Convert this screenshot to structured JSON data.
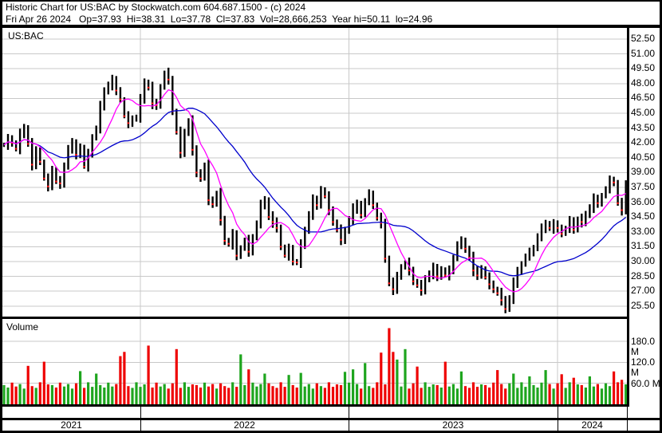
{
  "header": {
    "line1": "Historic Chart for US:BAC by Stockwatch.com 604.687.1500 - (c) 2024",
    "line2": "Fri Apr 26 2024   Op=37.93  Hi=38.31  Lo=37.78  Cl=37.83  Vol=28,666,253  Year hi=50.11  lo=24.96"
  },
  "main_chart": {
    "symbol_label": "US:BAC",
    "price_axis_labels": [
      "52.50",
      "51.00",
      "49.50",
      "48.00",
      "46.50",
      "45.00",
      "43.50",
      "42.00",
      "40.50",
      "39.00",
      "37.50",
      "36.00",
      "34.50",
      "33.00",
      "31.50",
      "30.00",
      "28.50",
      "27.00",
      "25.50"
    ]
  },
  "volume_panel": {
    "label": "Volume",
    "axis_labels": [
      "180.0 M",
      "120.0 M",
      "60.0 M"
    ]
  },
  "x_axis": {
    "years": [
      "2021",
      "2022",
      "2023",
      "2024"
    ]
  },
  "chart_data": {
    "type": "candlestick+volume",
    "title": "Historic Chart for US:BAC by Stockwatch.com 604.687.1500 - (c) 2024",
    "symbol": "US:BAC",
    "last_quote": {
      "date": "Fri Apr 26 2024",
      "open": 37.93,
      "high": 38.31,
      "low": 37.78,
      "close": 37.83,
      "volume": "28,666,253",
      "year_hi": 50.11,
      "year_lo": 24.96
    },
    "x_years": [
      "2021",
      "2022",
      "2023",
      "2024"
    ],
    "weeks_per_year": [
      34,
      52,
      52,
      18
    ],
    "price_ticks": [
      52.5,
      51.0,
      49.5,
      48.0,
      46.5,
      45.0,
      43.5,
      42.0,
      40.5,
      39.0,
      37.5,
      36.0,
      34.5,
      33.0,
      31.5,
      30.0,
      28.5,
      27.0,
      25.5
    ],
    "price_ylim": [
      24.4,
      53.6
    ],
    "volume_ticks_millions": [
      60,
      120,
      180
    ],
    "ma_short_weeks": 8,
    "ma_long_weeks": 26,
    "closes": [
      41.8,
      42.4,
      42.0,
      41.4,
      42.9,
      43.5,
      41.9,
      39.8,
      41.2,
      40.1,
      38.4,
      37.6,
      39.3,
      38.1,
      37.9,
      39.6,
      41.5,
      41.9,
      40.8,
      41.6,
      39.6,
      40.9,
      42.5,
      43.5,
      45.7,
      47.2,
      47.9,
      48.3,
      47.3,
      46.4,
      44.7,
      44.0,
      44.4,
      44.6,
      46.4,
      48.1,
      47.6,
      46.0,
      45.8,
      47.6,
      49.1,
      48.4,
      45.2,
      43.1,
      41.0,
      43.0,
      44.2,
      41.3,
      39.0,
      38.4,
      39.8,
      36.2,
      35.8,
      36.9,
      34.2,
      32.1,
      31.8,
      32.7,
      30.6,
      31.3,
      32.2,
      31.0,
      32.4,
      33.9,
      35.7,
      36.2,
      34.5,
      34.0,
      33.4,
      31.5,
      30.6,
      31.3,
      30.0,
      29.9,
      31.7,
      33.1,
      34.8,
      36.2,
      35.7,
      37.3,
      36.6,
      35.2,
      34.0,
      33.2,
      32.2,
      33.1,
      34.3,
      35.3,
      35.8,
      34.7,
      36.2,
      36.8,
      35.7,
      34.4,
      33.9,
      30.3,
      27.8,
      27.2,
      28.5,
      29.4,
      29.9,
      29.1,
      28.0,
      27.6,
      27.1,
      28.2,
      28.8,
      29.3,
      28.5,
      29.2,
      28.6,
      29.1,
      30.3,
      31.8,
      32.0,
      31.3,
      30.4,
      29.1,
      28.6,
      29.3,
      28.4,
      27.7,
      27.2,
      26.8,
      26.1,
      25.2,
      26.3,
      27.8,
      29.0,
      29.7,
      30.6,
      30.9,
      31.3,
      32.6,
      33.3,
      33.8,
      33.4,
      33.7,
      33.4,
      32.8,
      33.4,
      34.1,
      33.2,
      34.3,
      34.0,
      34.7,
      35.5,
      36.3,
      35.9,
      36.6,
      37.4,
      38.2,
      38.0,
      35.9,
      35.2,
      37.8
    ],
    "volumes_millions": [
      55,
      48,
      62,
      51,
      58,
      45,
      110,
      52,
      47,
      63,
      122,
      57,
      55,
      48,
      62,
      51,
      58,
      45,
      60,
      95,
      47,
      63,
      50,
      88,
      55,
      48,
      62,
      51,
      58,
      138,
      150,
      52,
      47,
      63,
      50,
      57,
      168,
      48,
      62,
      51,
      58,
      45,
      60,
      158,
      47,
      63,
      50,
      57,
      55,
      48,
      62,
      51,
      58,
      45,
      60,
      52,
      47,
      63,
      50,
      143,
      55,
      100,
      62,
      51,
      58,
      88,
      60,
      52,
      47,
      63,
      50,
      84,
      55,
      48,
      90,
      51,
      58,
      45,
      60,
      52,
      47,
      63,
      50,
      57,
      55,
      93,
      62,
      100,
      58,
      45,
      118,
      52,
      47,
      63,
      148,
      57,
      218,
      150,
      128,
      51,
      158,
      45,
      60,
      108,
      47,
      63,
      50,
      57,
      55,
      48,
      122,
      51,
      58,
      45,
      94,
      52,
      47,
      63,
      50,
      57,
      55,
      48,
      62,
      98,
      58,
      45,
      60,
      88,
      47,
      63,
      50,
      80,
      55,
      48,
      62,
      98,
      58,
      45,
      60,
      86,
      47,
      63,
      76,
      57,
      55,
      48,
      80,
      51,
      58,
      45,
      60,
      52,
      94,
      63,
      70,
      57
    ],
    "colors": {
      "grid": "#c8c8c8",
      "candle": "#000000",
      "down_tick": "#ff0000",
      "ma_short": "#ff00ff",
      "ma_long": "#0000cc",
      "vol_up": "#1ea51e",
      "vol_down": "#ee0000",
      "border": "#000000",
      "background": "#ffffff"
    },
    "legend": "none",
    "grid": true
  }
}
